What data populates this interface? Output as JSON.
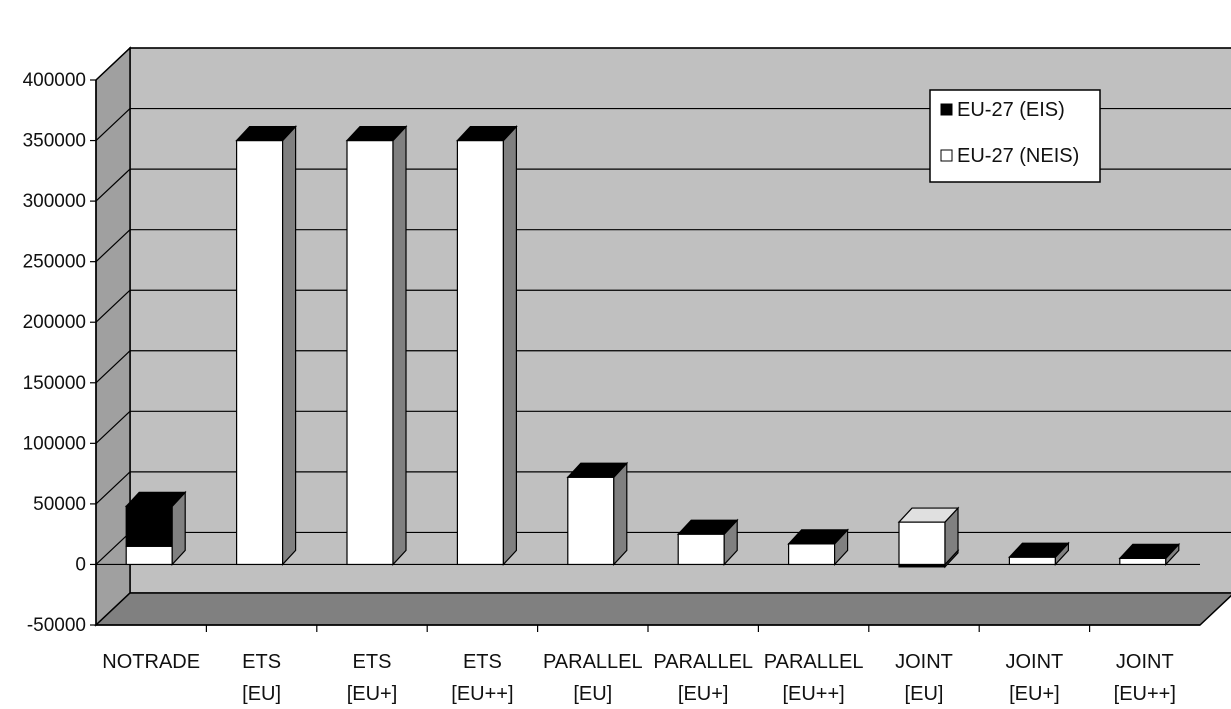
{
  "chart_data": {
    "type": "bar",
    "stacked": true,
    "three_d": true,
    "categories": [
      [
        "NOTRADE"
      ],
      [
        "ETS",
        "[EU]"
      ],
      [
        "ETS",
        "[EU+]"
      ],
      [
        "ETS",
        "[EU++]"
      ],
      [
        "PARALLEL",
        "[EU]"
      ],
      [
        "PARALLEL",
        "[EU+]"
      ],
      [
        "PARALLEL",
        "[EU++]"
      ],
      [
        "JOINT",
        "[EU]"
      ],
      [
        "JOINT",
        "[EU+]"
      ],
      [
        "JOINT",
        "[EU++]"
      ]
    ],
    "series": [
      {
        "name": "EU-27 (NEIS)",
        "color": "#ffffff",
        "values": [
          15000,
          350000,
          350000,
          350000,
          72000,
          25000,
          17000,
          35000,
          6000,
          5000
        ]
      },
      {
        "name": "EU-27 (EIS)",
        "color": "#000000",
        "values": [
          33000,
          0,
          0,
          0,
          0,
          0,
          0,
          -2000,
          0,
          0
        ]
      }
    ],
    "ylim": [
      -50000,
      400000
    ],
    "yticks": [
      "400000",
      "350000",
      "300000",
      "250000",
      "200000",
      "150000",
      "100000",
      "50000",
      "0",
      "-50000"
    ],
    "ytick_values": [
      400000,
      350000,
      300000,
      250000,
      200000,
      150000,
      100000,
      50000,
      0,
      -50000
    ],
    "grid": true,
    "legend_position": "top-right",
    "colors": {
      "wall": "#c0c0c0",
      "floor": "#808080",
      "side_wall": "#a0a0a0",
      "bar_side": "#808080",
      "gridline": "#000000"
    }
  }
}
